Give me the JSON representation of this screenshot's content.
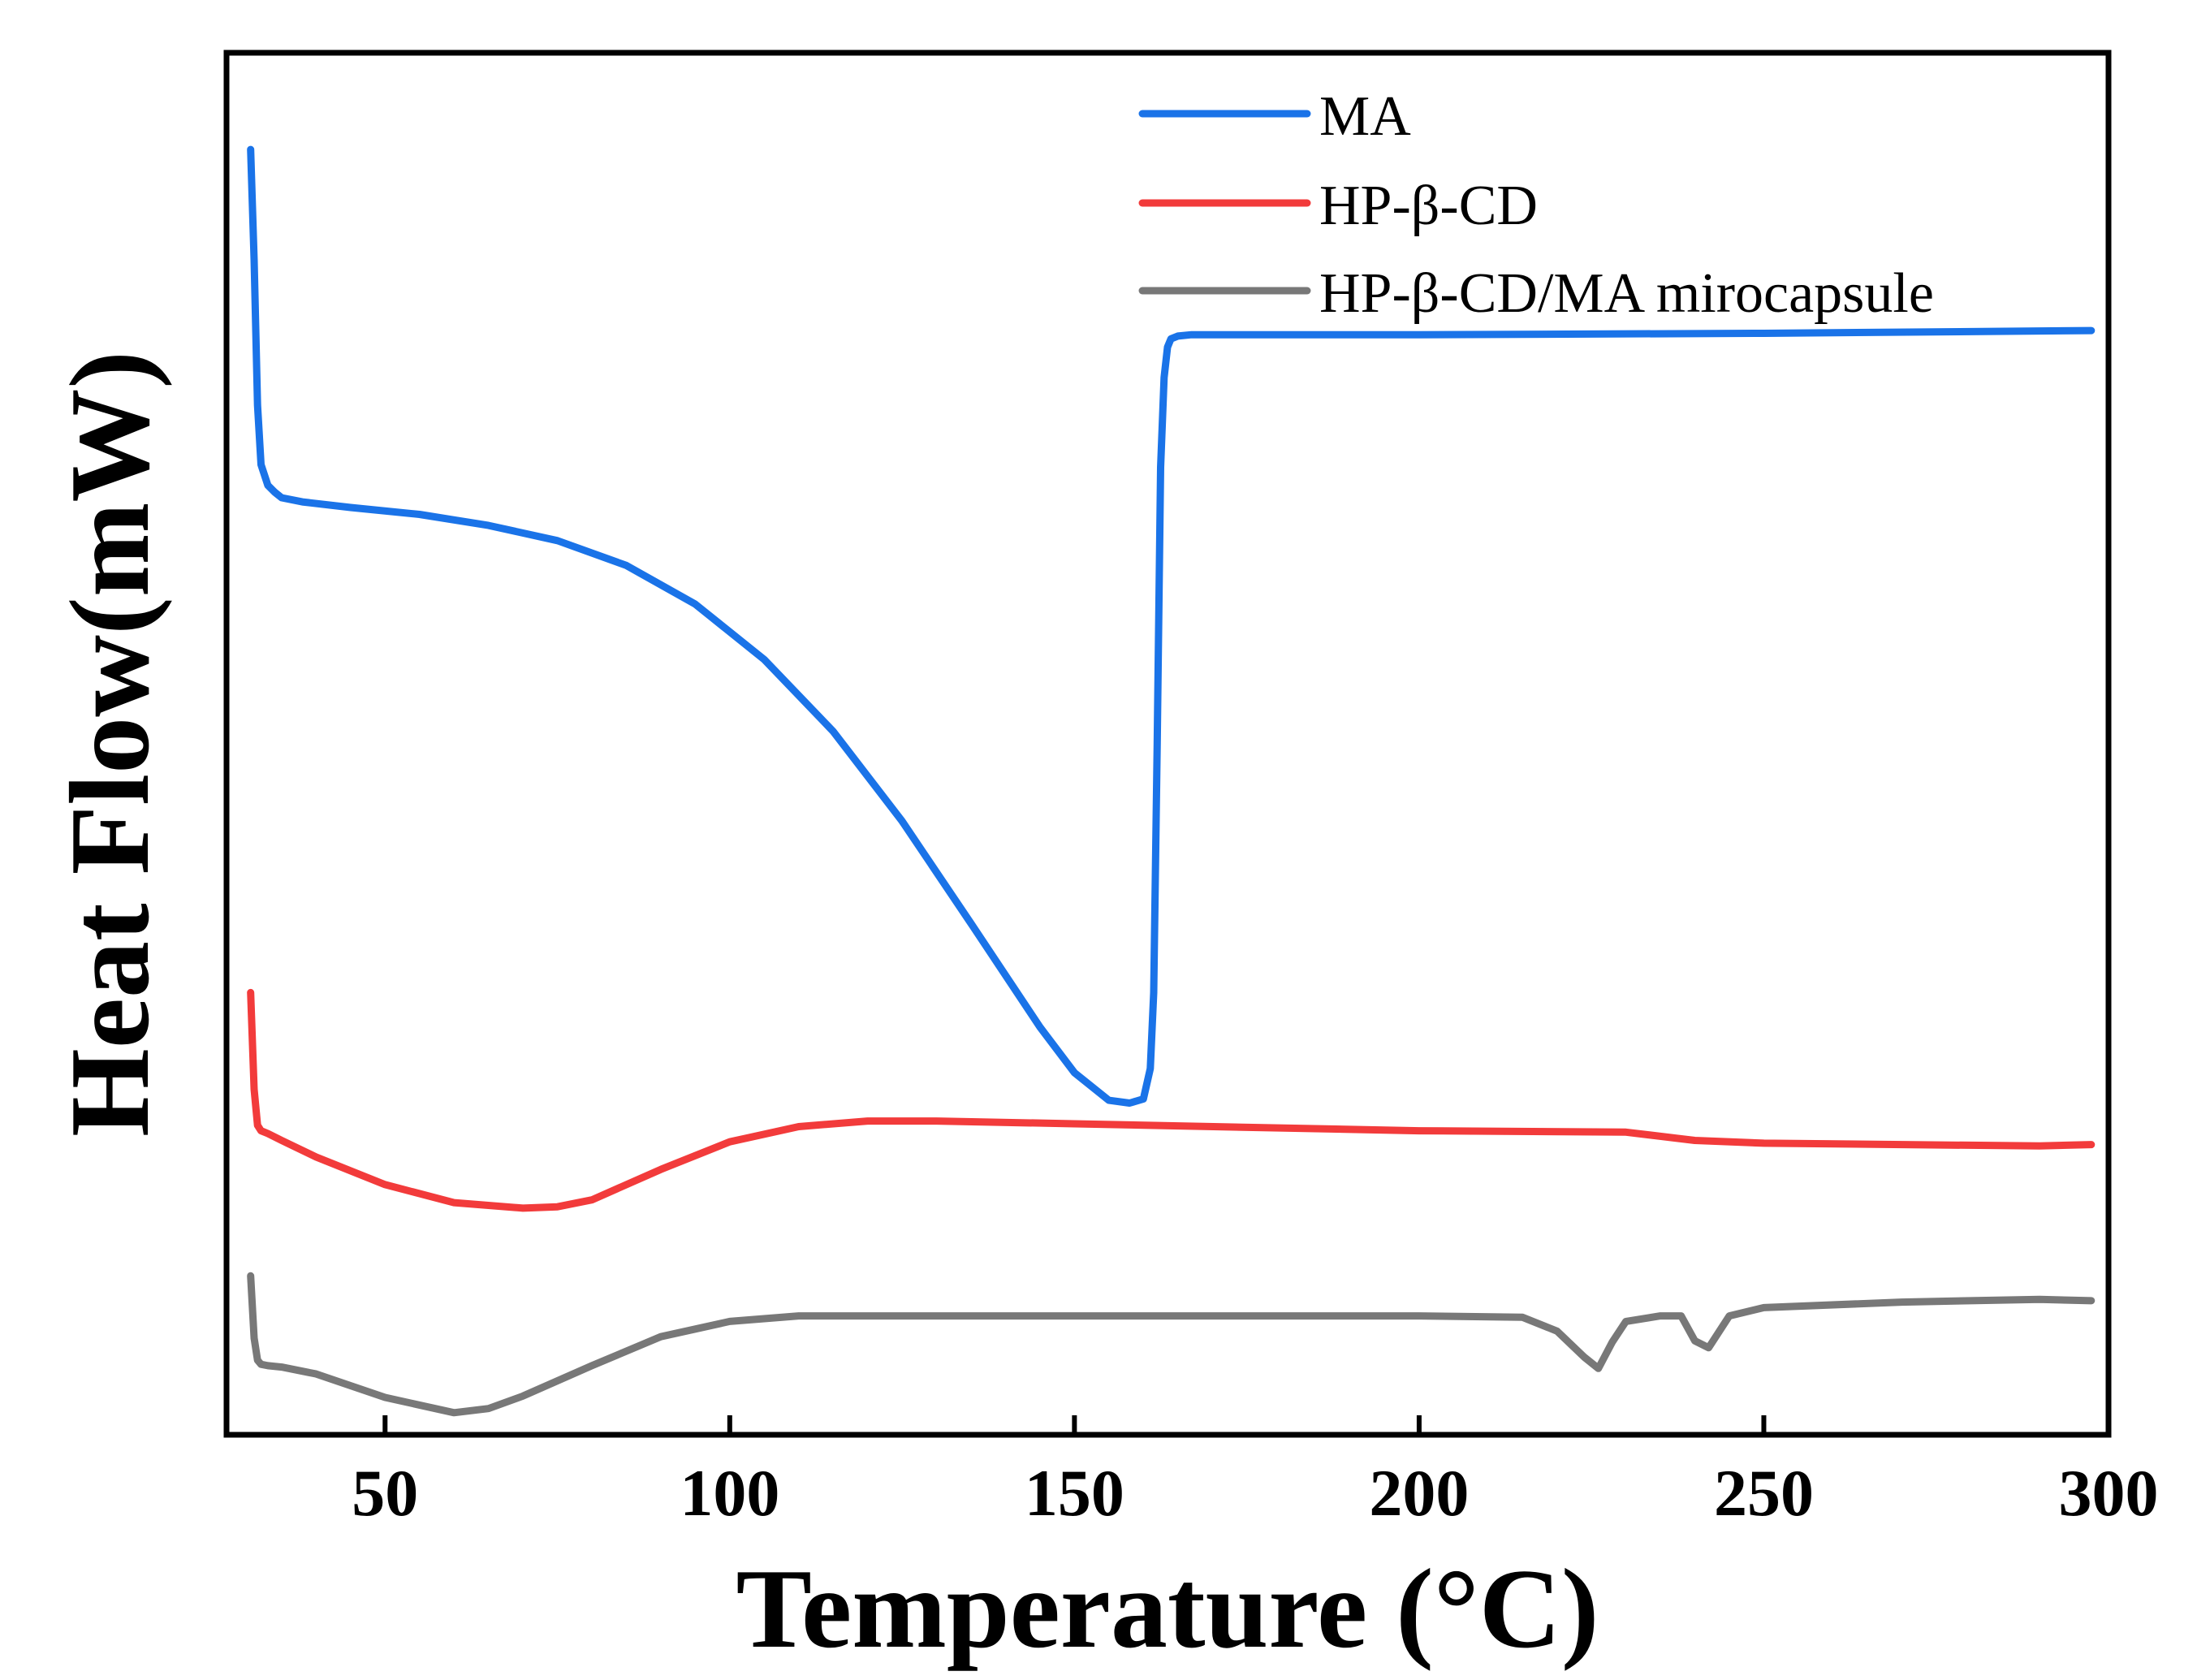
{
  "chart_data": {
    "type": "line",
    "title": "",
    "xlabel": "Temperature (°C)",
    "ylabel": "Heat Flow(mW)",
    "xlim": [
      27,
      300
    ],
    "ylim": [
      0,
      100
    ],
    "xticks": [
      50,
      100,
      150,
      200,
      250,
      300
    ],
    "xtick_labels": [
      "50",
      "100",
      "150",
      "200",
      "250",
      "300"
    ],
    "y_tick_labels_shown": false,
    "grid": false,
    "legend_position": "top-right",
    "series": [
      {
        "name": "MA",
        "color": "#1a73e8",
        "x": [
          30.5,
          31.0,
          31.5,
          32,
          33,
          34,
          35,
          38,
          45,
          55,
          65,
          75,
          85,
          95,
          105,
          115,
          125,
          135,
          145,
          150,
          155,
          158,
          160,
          161,
          161.5,
          162,
          162.5,
          163,
          163.5,
          164,
          165,
          167,
          180,
          200,
          250,
          297.5
        ],
        "y": [
          93.0,
          85.0,
          74.5,
          70.2,
          68.7,
          68.2,
          67.8,
          67.5,
          67.1,
          66.6,
          65.8,
          64.7,
          62.9,
          60.1,
          56.1,
          50.9,
          44.4,
          37.0,
          29.5,
          26.2,
          24.2,
          24.0,
          24.3,
          26.5,
          32.0,
          50.0,
          70.0,
          76.5,
          78.7,
          79.3,
          79.5,
          79.6,
          79.6,
          79.6,
          79.7,
          79.9
        ]
      },
      {
        "name": "HP-β-CD",
        "color": "#f23b3b",
        "x": [
          30.5,
          31.0,
          31.5,
          32,
          33,
          35,
          40,
          50,
          60,
          70,
          75,
          80,
          90,
          100,
          110,
          120,
          130,
          150,
          200,
          230,
          240,
          250,
          290,
          297.5
        ],
        "y": [
          32.0,
          25.0,
          22.4,
          22.0,
          21.8,
          21.3,
          20.1,
          18.1,
          16.8,
          16.4,
          16.5,
          17.0,
          19.2,
          21.2,
          22.3,
          22.7,
          22.7,
          22.5,
          22.0,
          21.9,
          21.3,
          21.1,
          20.9,
          21.0
        ]
      },
      {
        "name": "HP-β-CD/MA mirocapsule",
        "color": "#787878",
        "x": [
          30.5,
          31.0,
          31.5,
          32,
          33,
          35,
          40,
          50,
          60,
          65,
          70,
          80,
          90,
          100,
          110,
          150,
          200,
          215,
          220,
          224,
          226,
          228,
          230,
          235,
          238,
          240,
          242,
          245,
          250,
          270,
          290,
          297.5
        ],
        "y": [
          11.5,
          7.0,
          5.4,
          5.1,
          5.0,
          4.9,
          4.4,
          2.7,
          1.6,
          1.9,
          2.8,
          5.0,
          7.1,
          8.2,
          8.6,
          8.6,
          8.6,
          8.5,
          7.5,
          5.6,
          4.8,
          6.7,
          8.2,
          8.6,
          8.6,
          6.8,
          6.3,
          8.6,
          9.2,
          9.6,
          9.8,
          9.7
        ]
      }
    ]
  }
}
